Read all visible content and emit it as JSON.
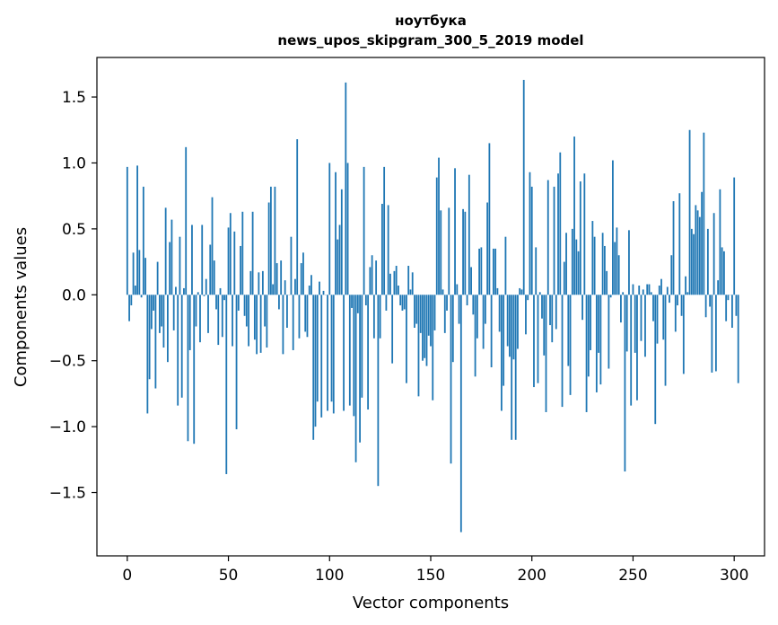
{
  "chart_data": {
    "type": "bar",
    "title": "ноутбука",
    "subtitle": "news_upos_skipgram_300_5_2019 model",
    "xlabel": "Vector components",
    "ylabel": "Components values",
    "xlim": [
      -15,
      315
    ],
    "ylim": [
      -1.98,
      1.8
    ],
    "xticks": [
      0,
      50,
      100,
      150,
      200,
      250,
      300
    ],
    "yticks": [
      -1.5,
      -1.0,
      -0.5,
      0.0,
      0.5,
      1.0,
      1.5
    ],
    "ytick_labels": [
      "−1.5",
      "−1.0",
      "−0.5",
      "0.0",
      "0.5",
      "1.0",
      "1.5"
    ],
    "grid": false,
    "bar_color": "#1f77b4",
    "values": [
      0.97,
      -0.2,
      -0.08,
      0.32,
      0.07,
      0.98,
      0.34,
      -0.02,
      0.82,
      0.28,
      -0.9,
      -0.64,
      -0.26,
      -0.12,
      -0.71,
      0.25,
      -0.29,
      -0.24,
      -0.4,
      0.66,
      -0.51,
      0.4,
      0.57,
      -0.27,
      0.06,
      -0.84,
      0.44,
      -0.78,
      0.05,
      1.12,
      -1.11,
      -0.42,
      0.53,
      -1.13,
      -0.24,
      0.02,
      -0.36,
      0.53,
      -0.01,
      0.12,
      -0.29,
      0.38,
      0.74,
      0.26,
      -0.11,
      -0.38,
      0.05,
      -0.32,
      -0.04,
      -1.36,
      0.51,
      0.62,
      -0.39,
      0.48,
      -1.02,
      -0.12,
      0.37,
      0.63,
      -0.16,
      -0.24,
      -0.39,
      0.18,
      0.63,
      -0.34,
      -0.45,
      0.17,
      -0.44,
      0.18,
      -0.24,
      -0.4,
      0.7,
      0.82,
      0.08,
      0.82,
      0.24,
      -0.11,
      0.26,
      -0.45,
      0.11,
      -0.25,
      0.0,
      0.44,
      -0.42,
      0.12,
      1.18,
      -0.33,
      0.24,
      0.32,
      -0.28,
      -0.32,
      0.07,
      0.15,
      -1.1,
      -1.0,
      -0.81,
      0.1,
      -0.93,
      0.03,
      0.0,
      -0.88,
      1.0,
      -0.81,
      -0.9,
      0.93,
      0.42,
      0.53,
      0.8,
      -0.88,
      1.61,
      1.0,
      -0.84,
      -0.1,
      -0.92,
      -1.27,
      -0.14,
      -1.12,
      -0.78,
      0.97,
      -0.08,
      -0.87,
      0.21,
      0.3,
      -0.33,
      0.26,
      -1.45,
      -0.33,
      0.69,
      0.97,
      -0.12,
      0.68,
      0.16,
      -0.52,
      0.18,
      0.22,
      0.07,
      -0.08,
      -0.12,
      -0.11,
      -0.67,
      0.22,
      0.04,
      0.17,
      -0.25,
      -0.22,
      -0.77,
      -0.29,
      -0.5,
      -0.48,
      -0.54,
      -0.31,
      -0.39,
      -0.8,
      -0.27,
      0.89,
      1.04,
      0.64,
      0.04,
      -0.29,
      -0.12,
      0.66,
      -1.28,
      -0.51,
      0.96,
      0.08,
      -0.22,
      -1.8,
      0.65,
      0.63,
      -0.08,
      0.91,
      0.21,
      -0.15,
      -0.62,
      -0.33,
      0.35,
      0.36,
      -0.41,
      -0.22,
      0.7,
      1.15,
      -0.55,
      0.35,
      0.35,
      0.05,
      -0.28,
      -0.88,
      -0.69,
      0.44,
      -0.39,
      -0.47,
      -1.1,
      -0.49,
      -1.1,
      -0.41,
      0.05,
      0.04,
      1.63,
      -0.3,
      -0.04,
      0.93,
      0.82,
      -0.7,
      0.36,
      -0.67,
      0.02,
      -0.18,
      -0.46,
      -0.89,
      0.87,
      -0.23,
      -0.36,
      0.82,
      -0.26,
      0.92,
      1.08,
      -0.85,
      0.25,
      0.47,
      -0.54,
      -0.76,
      0.5,
      1.2,
      0.42,
      0.33,
      0.86,
      -0.19,
      0.92,
      -0.89,
      -0.62,
      -0.42,
      0.56,
      0.44,
      -0.74,
      -0.44,
      -0.68,
      0.47,
      0.37,
      0.18,
      -0.56,
      -0.02,
      1.02,
      0.4,
      0.51,
      0.3,
      -0.21,
      0.02,
      -1.34,
      -0.43,
      0.49,
      -0.84,
      0.08,
      -0.44,
      -0.8,
      0.07,
      -0.35,
      0.04,
      -0.47,
      0.08,
      0.08,
      0.02,
      -0.2,
      -0.98,
      -0.37,
      0.07,
      0.12,
      -0.34,
      -0.69,
      0.06,
      -0.06,
      0.3,
      0.71,
      -0.28,
      -0.08,
      0.77,
      -0.16,
      -0.6,
      0.14,
      0.02,
      1.25,
      0.5,
      0.46,
      0.68,
      0.64,
      0.59,
      0.78,
      1.23,
      -0.17,
      0.5,
      -0.09,
      -0.59,
      0.62,
      -0.58,
      0.11,
      0.8,
      0.36,
      0.33,
      -0.2,
      -0.04,
      0.0,
      -0.25,
      0.89,
      -0.16,
      -0.67
    ]
  }
}
